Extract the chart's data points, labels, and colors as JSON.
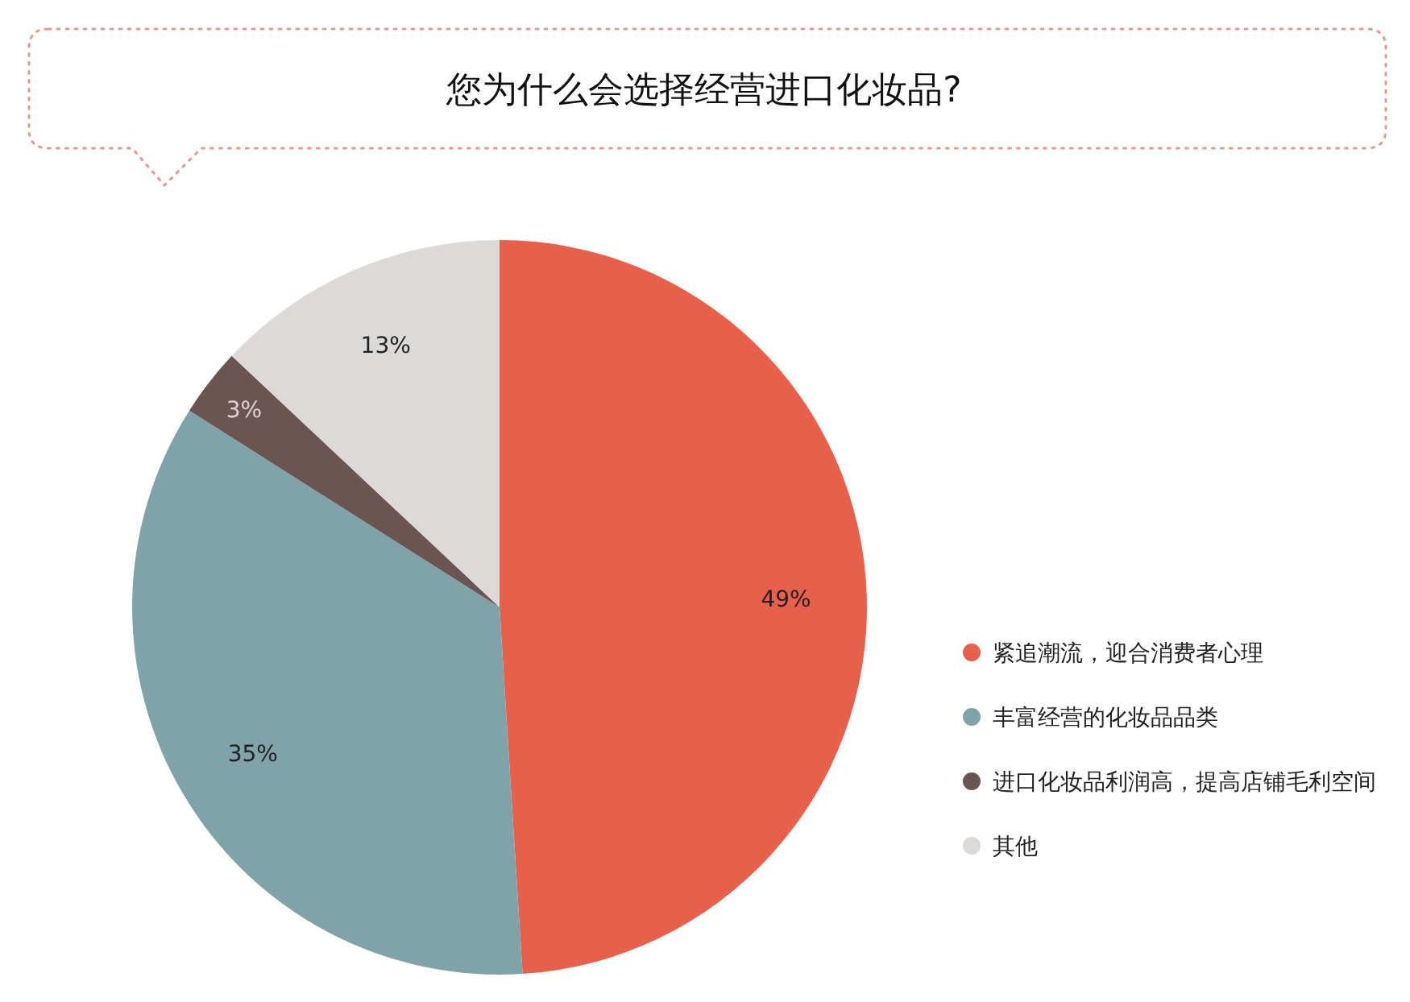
{
  "chart_data": {
    "type": "pie",
    "title": "您为什么会选择经营进口化妆品?",
    "categories": [
      "紧追潮流，迎合消费者心理",
      "丰富经营的化妆品品类",
      "进口化妆品利润高，提高店铺毛利空间",
      "其他"
    ],
    "values": [
      49,
      35,
      3,
      13
    ],
    "colors": [
      "#e8604c",
      "#7fa3a8",
      "#6b5552",
      "#dcd9d9"
    ],
    "value_labels": [
      "49%",
      "35%",
      "3%",
      "13%"
    ],
    "legend": "right"
  }
}
